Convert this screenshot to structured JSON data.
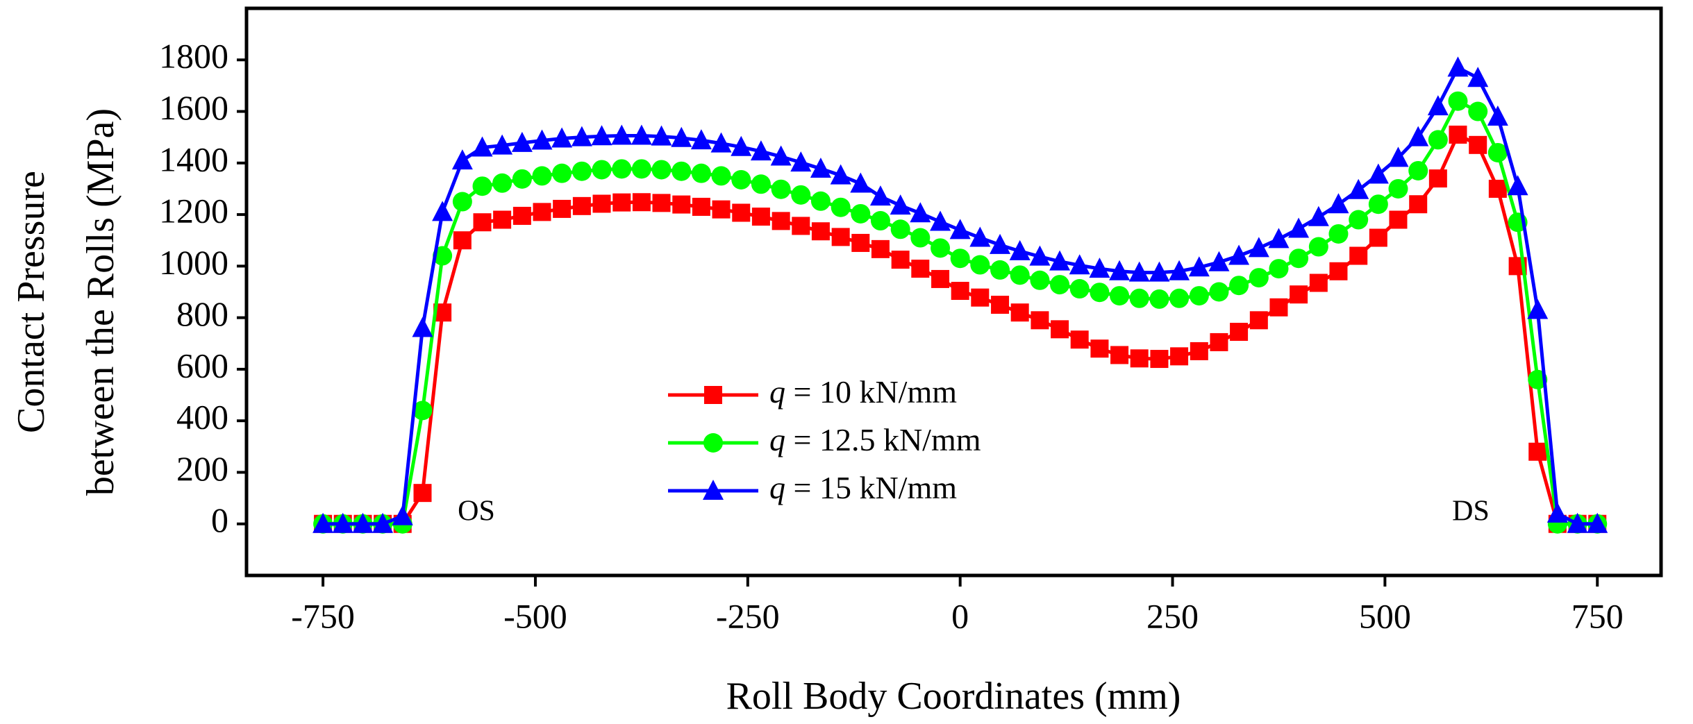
{
  "chart_data": {
    "type": "line",
    "x_label": "Roll Body Coordinates (mm)",
    "y_label": [
      "Contact Pressure",
      "between the Rolls (MPa)"
    ],
    "annotations": [
      {
        "text": "OS"
      },
      {
        "text": "DS"
      }
    ],
    "xlim": [
      -840,
      825
    ],
    "ylim": [
      -200,
      2000
    ],
    "xticks": [
      -750,
      -500,
      -250,
      0,
      250,
      500,
      750
    ],
    "yticks": [
      0,
      200,
      400,
      600,
      800,
      1000,
      1200,
      1400,
      1600,
      1800
    ],
    "x": [
      -750,
      -726.6,
      -703.1,
      -679.7,
      -656.3,
      -632.8,
      -609.4,
      -585.9,
      -562.5,
      -539.1,
      -515.6,
      -492.2,
      -468.8,
      -445.3,
      -421.9,
      -398.4,
      -375,
      -351.6,
      -328.1,
      -304.7,
      -281.3,
      -257.8,
      -234.4,
      -210.9,
      -187.5,
      -164.1,
      -140.6,
      -117.2,
      -93.8,
      -70.3,
      -46.9,
      -23.4,
      0,
      23.4,
      46.9,
      70.3,
      93.8,
      117.2,
      140.6,
      164.1,
      187.5,
      210.9,
      234.4,
      257.8,
      281.3,
      304.7,
      328.1,
      351.6,
      375,
      398.4,
      421.9,
      445.3,
      468.8,
      492.2,
      515.6,
      539.1,
      562.5,
      585.9,
      609.4,
      632.8,
      656.3,
      679.7,
      703.1,
      726.6,
      750
    ],
    "series": [
      {
        "name": "q = 10 kN/mm",
        "color": "#ff0000",
        "marker": "square",
        "values": [
          0,
          0,
          0,
          0,
          0,
          120,
          820,
          1100,
          1170,
          1180,
          1195,
          1210,
          1222,
          1233,
          1242,
          1247,
          1248,
          1245,
          1239,
          1230,
          1220,
          1207,
          1192,
          1175,
          1156,
          1135,
          1113,
          1090,
          1066,
          1025,
          990,
          950,
          904,
          878,
          850,
          820,
          790,
          755,
          715,
          680,
          655,
          642,
          640,
          650,
          670,
          705,
          745,
          790,
          840,
          890,
          935,
          980,
          1040,
          1110,
          1180,
          1240,
          1340,
          1510,
          1470,
          1300,
          1000,
          280,
          0,
          0,
          0
        ]
      },
      {
        "name": "q = 12.5 kN/mm",
        "color": "#00ff00",
        "marker": "circle",
        "values": [
          0,
          0,
          0,
          0,
          0,
          440,
          1040,
          1250,
          1310,
          1322,
          1338,
          1350,
          1360,
          1368,
          1374,
          1377,
          1377,
          1374,
          1368,
          1360,
          1350,
          1335,
          1318,
          1298,
          1276,
          1252,
          1228,
          1203,
          1176,
          1143,
          1110,
          1070,
          1030,
          1005,
          985,
          965,
          945,
          928,
          912,
          898,
          885,
          875,
          872,
          875,
          885,
          900,
          925,
          955,
          990,
          1030,
          1075,
          1125,
          1180,
          1240,
          1300,
          1370,
          1490,
          1640,
          1600,
          1440,
          1170,
          560,
          0,
          0,
          0
        ]
      },
      {
        "name": "q = 15 kN/mm",
        "color": "#0000ff",
        "marker": "triangle",
        "values": [
          0,
          0,
          0,
          0,
          30,
          760,
          1210,
          1410,
          1460,
          1468,
          1478,
          1487,
          1495,
          1500,
          1504,
          1506,
          1506,
          1503,
          1497,
          1488,
          1476,
          1462,
          1445,
          1425,
          1402,
          1378,
          1352,
          1320,
          1270,
          1235,
          1205,
          1172,
          1140,
          1110,
          1082,
          1058,
          1037,
          1018,
          1003,
          990,
          980,
          975,
          975,
          980,
          995,
          1015,
          1040,
          1070,
          1105,
          1145,
          1190,
          1240,
          1295,
          1355,
          1420,
          1500,
          1620,
          1770,
          1730,
          1580,
          1310,
          830,
          40,
          0,
          0
        ]
      }
    ]
  }
}
